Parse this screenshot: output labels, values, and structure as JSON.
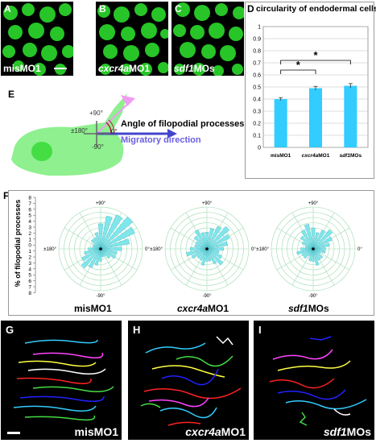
{
  "panels": {
    "A": {
      "letter": "A",
      "caption": "misMO1"
    },
    "B": {
      "letter": "B",
      "caption_italic": "cxcr4a",
      "caption_rest": "MO1"
    },
    "C": {
      "letter": "C",
      "caption_italic": "sdf1",
      "caption_rest": "MOs"
    },
    "E": {
      "letter": "E"
    },
    "F": {
      "letter": "F"
    },
    "G": {
      "letter": "G",
      "caption": "misMO1"
    },
    "H": {
      "letter": "H",
      "caption_italic": "cxcr4a",
      "caption_rest": "MO1"
    },
    "I": {
      "letter": "I",
      "caption_italic": "sdf1",
      "caption_rest": "MOs"
    }
  },
  "schematic": {
    "angle_label": "Angle of filopodial processes",
    "direction_label": "Migratory direction",
    "deg_plus90": "+90°",
    "deg_minus90": "-90°",
    "deg_180": "±180°",
    "deg_0": "0°"
  },
  "rose": {
    "ylabel": "% of filopodial processes",
    "yticks": [
      "8",
      "7",
      "6",
      "5",
      "4",
      "3",
      "2",
      "1",
      "0",
      "1",
      "2",
      "3",
      "4",
      "5",
      "6",
      "7",
      "8"
    ],
    "deg_top": "+90°",
    "deg_bottom": "-90°",
    "deg_left": "±180°",
    "deg_right": "0°",
    "captions": [
      {
        "plain": "misMO1"
      },
      {
        "italic": "cxcr4a",
        "plain": "MO1"
      },
      {
        "italic": "sdf1",
        "plain": "MOs"
      }
    ]
  },
  "chart_data": {
    "type": "bar",
    "title": "circularity of endodermal cells",
    "categories": [
      "misMO1",
      "cxcr4aMO1",
      "sdf1MOs"
    ],
    "category_italic": [
      "",
      "cxcr4a",
      "sdf1"
    ],
    "category_plain": [
      "misMO1",
      "MO1",
      "MOs"
    ],
    "values": [
      0.4,
      0.49,
      0.51
    ],
    "errors": [
      0.012,
      0.015,
      0.018
    ],
    "ylim": [
      0,
      1
    ],
    "yticks": [
      "0",
      "0.1",
      "0.2",
      "0.3",
      "0.4",
      "0.5",
      "0.6",
      "0.7",
      "0.8",
      "0.9",
      "1"
    ],
    "grid": true,
    "bar_color": "#33ccff",
    "significance": [
      "*",
      "*"
    ]
  },
  "colors": {
    "green_cells": "#2ee82e",
    "cell_body": "#8ef08e",
    "arrow_blue": "#6a5ee0",
    "bar": "#33ccff"
  }
}
